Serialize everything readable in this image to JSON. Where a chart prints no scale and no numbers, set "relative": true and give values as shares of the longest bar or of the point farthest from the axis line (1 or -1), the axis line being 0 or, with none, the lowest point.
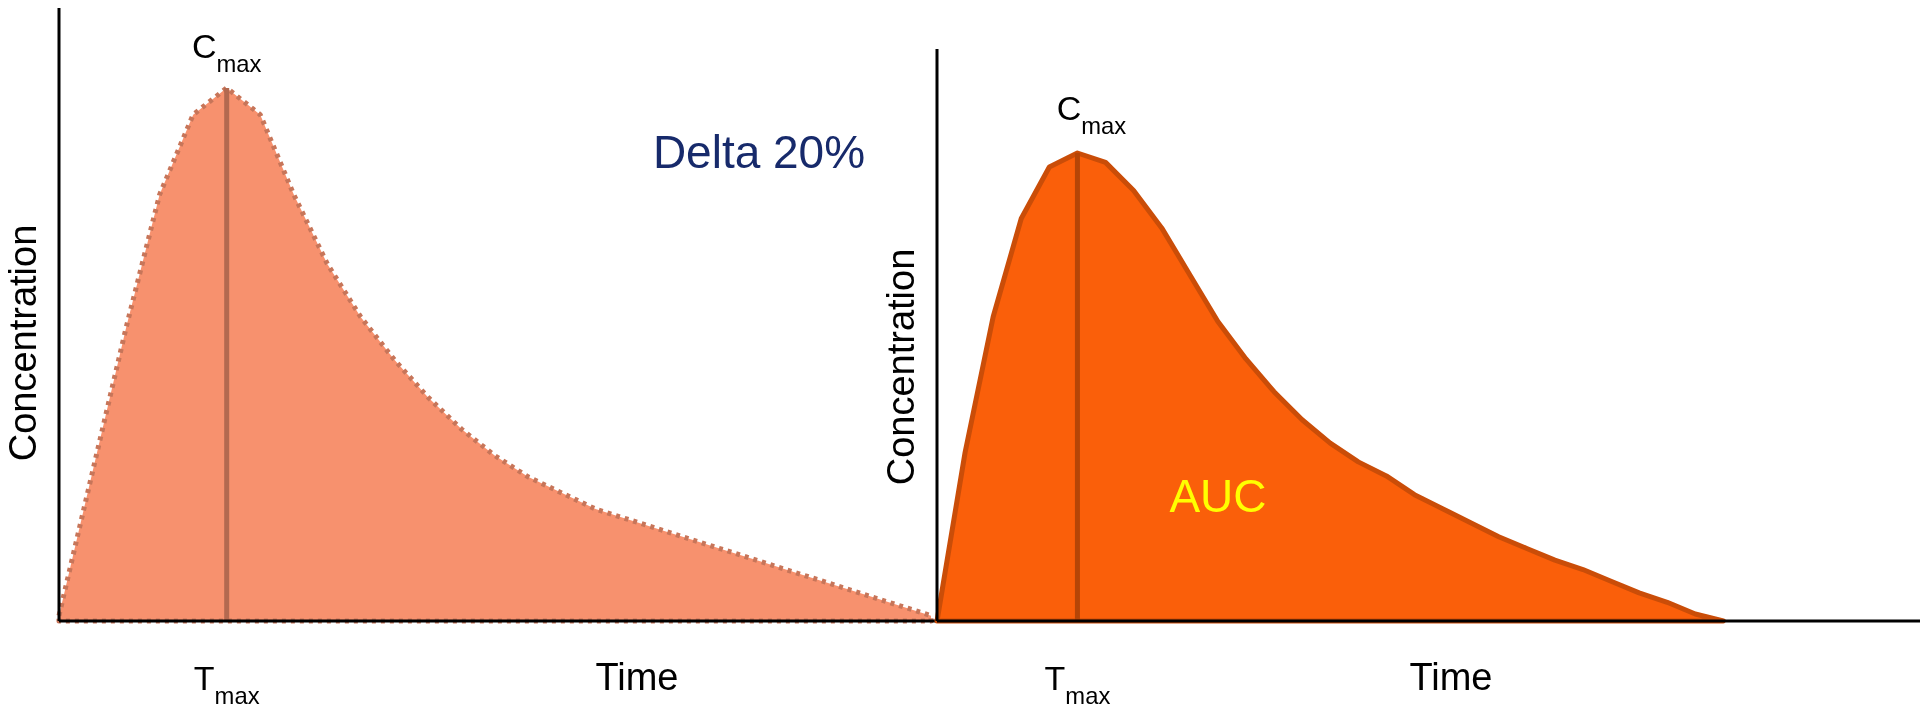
{
  "chart_data": [
    {
      "type": "area",
      "relative": true,
      "xlabel": "Time",
      "ylabel": "Concentration",
      "line_style": "dotted",
      "categories": [
        null,
        null,
        null,
        null,
        null,
        null,
        null,
        null,
        null,
        null,
        null,
        null,
        null,
        null,
        null,
        null,
        null,
        null,
        null,
        null,
        null,
        null,
        null,
        null,
        null,
        null,
        null
      ],
      "series": [
        {
          "color": "#f7916e",
          "values": [
            0.01,
            0.28,
            0.55,
            0.8,
            0.95,
            1,
            0.95,
            0.8,
            0.67,
            0.57,
            0.49,
            0.42,
            0.36,
            0.31,
            0.27,
            0.24,
            0.21,
            0.19,
            0.17,
            0.15,
            0.13,
            0.11,
            0.09,
            0.07,
            0.05,
            0.03,
            0.01
          ]
        }
      ],
      "annotations": [
        "C$_{max}$",
        "Delta 20%",
        "T$_{max}$"
      ]
    },
    {
      "type": "area",
      "relative": true,
      "xlabel": "Time",
      "ylabel": "Concentration",
      "categories": [
        null,
        null,
        null,
        null,
        null,
        null,
        null,
        null,
        null,
        null,
        null,
        null,
        null,
        null,
        null,
        null,
        null,
        null,
        null,
        null,
        null,
        null,
        null,
        null,
        null,
        null,
        null,
        null,
        null,
        null,
        null,
        null,
        null,
        null,
        null,
        null
      ],
      "series": [
        {
          "color": "#fa5f0a",
          "values": [
            0,
            0.36,
            0.65,
            0.86,
            0.97,
            1,
            0.98,
            0.92,
            0.84,
            0.74,
            0.64,
            0.56,
            0.49,
            0.43,
            0.38,
            0.34,
            0.31,
            0.27,
            0.24,
            0.21,
            0.18,
            0.155,
            0.13,
            0.11,
            0.085,
            0.06,
            0.04,
            0.015,
            0,
            null,
            null,
            null,
            null,
            null,
            null,
            null
          ]
        }
      ],
      "annotations": [
        "C$_{max}$",
        "AUC",
        "T$_{max}$"
      ]
    }
  ]
}
